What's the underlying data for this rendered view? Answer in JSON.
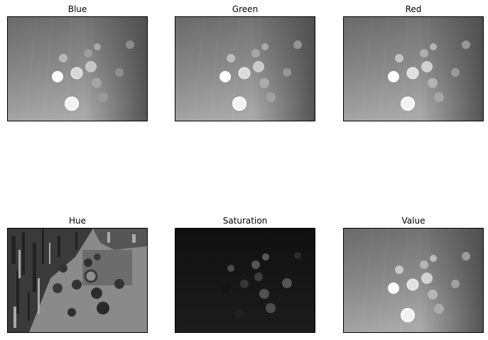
{
  "figure": {
    "panels": [
      {
        "title": "Blue",
        "kind": "gray"
      },
      {
        "title": "Green",
        "kind": "gray"
      },
      {
        "title": "Red",
        "kind": "gray"
      },
      {
        "title": "Hue",
        "kind": "hue"
      },
      {
        "title": "Saturation",
        "kind": "sat"
      },
      {
        "title": "Value",
        "kind": "gray"
      }
    ]
  }
}
